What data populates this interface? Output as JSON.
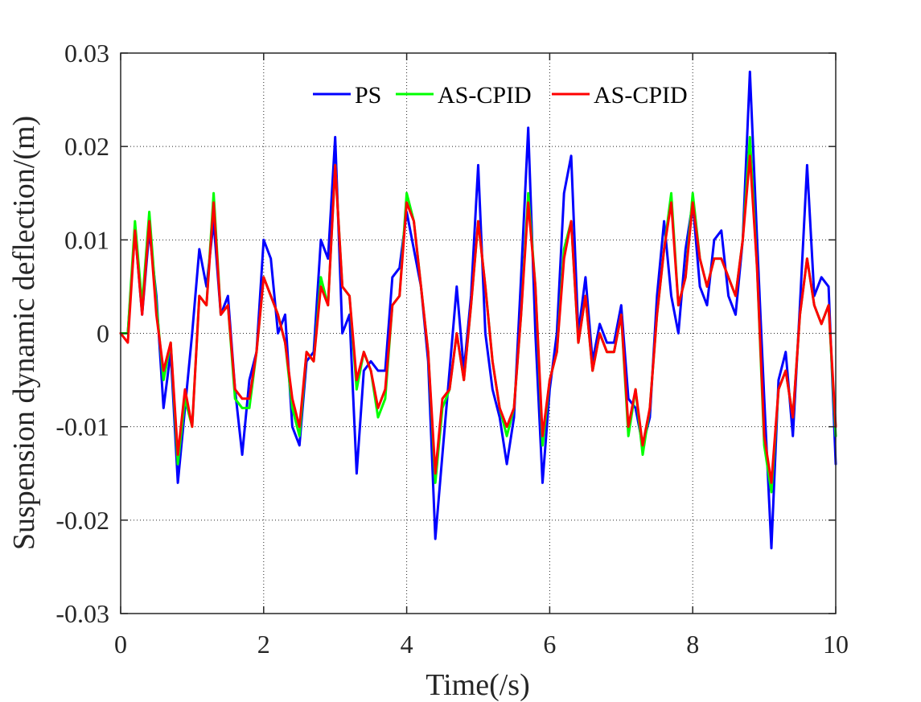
{
  "chart_data": {
    "type": "line",
    "title": "",
    "xlabel": "Time(/s)",
    "ylabel": "Suspension dynamic deflection/(m)",
    "xlim": [
      0,
      10
    ],
    "ylim": [
      -0.03,
      0.03
    ],
    "xticks": [
      0,
      2,
      4,
      6,
      8,
      10
    ],
    "xtick_labels": [
      "0",
      "2",
      "4",
      "6",
      "8",
      "10"
    ],
    "yticks": [
      -0.03,
      -0.02,
      -0.01,
      0,
      0.01,
      0.02,
      0.03
    ],
    "ytick_labels": [
      "-0.03",
      "-0.02",
      "-0.01",
      "0",
      "0.01",
      "0.02",
      "0.03"
    ],
    "grid": true,
    "legend_position": "top",
    "colors": {
      "PS": "#0000ff",
      "AS-CPID-1": "#00ff00",
      "AS-CPID-2": "#ff0000"
    },
    "x": [
      0.0,
      0.1,
      0.2,
      0.3,
      0.4,
      0.5,
      0.6,
      0.7,
      0.8,
      0.9,
      1.0,
      1.1,
      1.2,
      1.3,
      1.4,
      1.5,
      1.6,
      1.7,
      1.8,
      1.9,
      2.0,
      2.1,
      2.2,
      2.3,
      2.4,
      2.5,
      2.6,
      2.7,
      2.8,
      2.9,
      3.0,
      3.1,
      3.2,
      3.3,
      3.4,
      3.5,
      3.6,
      3.7,
      3.8,
      3.9,
      4.0,
      4.1,
      4.2,
      4.3,
      4.4,
      4.5,
      4.6,
      4.7,
      4.8,
      4.9,
      5.0,
      5.1,
      5.2,
      5.3,
      5.4,
      5.5,
      5.6,
      5.7,
      5.8,
      5.9,
      6.0,
      6.1,
      6.2,
      6.3,
      6.4,
      6.5,
      6.6,
      6.7,
      6.8,
      6.9,
      7.0,
      7.1,
      7.2,
      7.3,
      7.4,
      7.5,
      7.6,
      7.7,
      7.8,
      7.9,
      8.0,
      8.1,
      8.2,
      8.3,
      8.4,
      8.5,
      8.6,
      8.7,
      8.8,
      8.9,
      9.0,
      9.1,
      9.2,
      9.3,
      9.4,
      9.5,
      9.6,
      9.7,
      9.8,
      9.9,
      10.0
    ],
    "series": [
      {
        "name": "PS",
        "values": [
          0.0,
          0.0,
          0.011,
          0.002,
          0.011,
          0.004,
          -0.008,
          -0.002,
          -0.016,
          -0.008,
          0.0,
          0.009,
          0.005,
          0.012,
          0.002,
          0.004,
          -0.006,
          -0.013,
          -0.005,
          -0.002,
          0.01,
          0.008,
          0.0,
          0.002,
          -0.01,
          -0.012,
          -0.003,
          -0.002,
          0.01,
          0.008,
          0.021,
          0.0,
          0.002,
          -0.015,
          -0.004,
          -0.003,
          -0.004,
          -0.004,
          0.006,
          0.007,
          0.013,
          0.009,
          0.005,
          -0.003,
          -0.022,
          -0.013,
          -0.004,
          0.005,
          -0.004,
          0.004,
          0.018,
          0.0,
          -0.006,
          -0.009,
          -0.014,
          -0.009,
          0.006,
          0.022,
          0.0,
          -0.016,
          -0.006,
          0.0,
          0.015,
          0.019,
          0.0,
          0.006,
          -0.003,
          0.001,
          -0.001,
          -0.001,
          0.003,
          -0.007,
          -0.008,
          -0.012,
          -0.009,
          0.004,
          0.012,
          0.004,
          0.0,
          0.009,
          0.014,
          0.005,
          0.003,
          0.01,
          0.011,
          0.004,
          0.002,
          0.01,
          0.028,
          0.01,
          -0.007,
          -0.023,
          -0.005,
          -0.002,
          -0.011,
          0.003,
          0.018,
          0.004,
          0.006,
          0.005,
          -0.014
        ]
      },
      {
        "name": "AS-CPID",
        "values": [
          0.0,
          0.0,
          0.012,
          0.003,
          0.013,
          0.003,
          -0.005,
          -0.001,
          -0.014,
          -0.007,
          -0.01,
          0.004,
          0.003,
          0.015,
          0.002,
          0.003,
          -0.007,
          -0.008,
          -0.008,
          -0.002,
          0.006,
          0.004,
          0.002,
          -0.001,
          -0.008,
          -0.011,
          -0.002,
          -0.003,
          0.006,
          0.003,
          0.018,
          0.005,
          0.004,
          -0.006,
          -0.002,
          -0.004,
          -0.009,
          -0.007,
          0.003,
          0.004,
          0.015,
          0.012,
          0.005,
          -0.002,
          -0.016,
          -0.008,
          -0.006,
          0.0,
          -0.005,
          0.003,
          0.012,
          0.005,
          -0.003,
          -0.008,
          -0.011,
          -0.008,
          0.002,
          0.015,
          0.005,
          -0.012,
          -0.005,
          -0.002,
          0.009,
          0.012,
          -0.001,
          0.004,
          -0.004,
          0.0,
          -0.002,
          -0.002,
          0.002,
          -0.011,
          -0.006,
          -0.013,
          -0.008,
          0.002,
          0.009,
          0.015,
          0.003,
          0.006,
          0.015,
          0.008,
          0.005,
          0.008,
          0.008,
          0.006,
          0.004,
          0.01,
          0.021,
          0.007,
          -0.012,
          -0.017,
          -0.006,
          -0.004,
          -0.009,
          0.002,
          0.008,
          0.003,
          0.001,
          0.003,
          -0.011
        ]
      },
      {
        "name": "AS-CPID",
        "values": [
          0.0,
          -0.001,
          0.011,
          0.002,
          0.012,
          0.002,
          -0.004,
          -0.001,
          -0.013,
          -0.006,
          -0.01,
          0.004,
          0.003,
          0.014,
          0.002,
          0.003,
          -0.006,
          -0.007,
          -0.007,
          -0.002,
          0.006,
          0.004,
          0.002,
          -0.001,
          -0.007,
          -0.01,
          -0.002,
          -0.003,
          0.005,
          0.003,
          0.018,
          0.005,
          0.004,
          -0.005,
          -0.002,
          -0.004,
          -0.008,
          -0.006,
          0.003,
          0.004,
          0.014,
          0.012,
          0.005,
          -0.002,
          -0.015,
          -0.007,
          -0.006,
          0.0,
          -0.005,
          0.003,
          0.012,
          0.005,
          -0.003,
          -0.008,
          -0.01,
          -0.008,
          0.002,
          0.014,
          0.005,
          -0.011,
          -0.005,
          -0.002,
          0.008,
          0.012,
          -0.001,
          0.004,
          -0.004,
          0.0,
          -0.002,
          -0.002,
          0.002,
          -0.01,
          -0.006,
          -0.012,
          -0.008,
          0.002,
          0.009,
          0.014,
          0.003,
          0.006,
          0.014,
          0.008,
          0.005,
          0.008,
          0.008,
          0.006,
          0.004,
          0.01,
          0.019,
          0.007,
          -0.011,
          -0.016,
          -0.006,
          -0.004,
          -0.009,
          0.002,
          0.008,
          0.003,
          0.001,
          0.003,
          -0.01
        ]
      }
    ],
    "legend": [
      {
        "label": "PS",
        "color": "#0000ff"
      },
      {
        "label": "AS-CPID",
        "color": "#00ff00"
      },
      {
        "label": "AS-CPID",
        "color": "#ff0000"
      }
    ]
  }
}
